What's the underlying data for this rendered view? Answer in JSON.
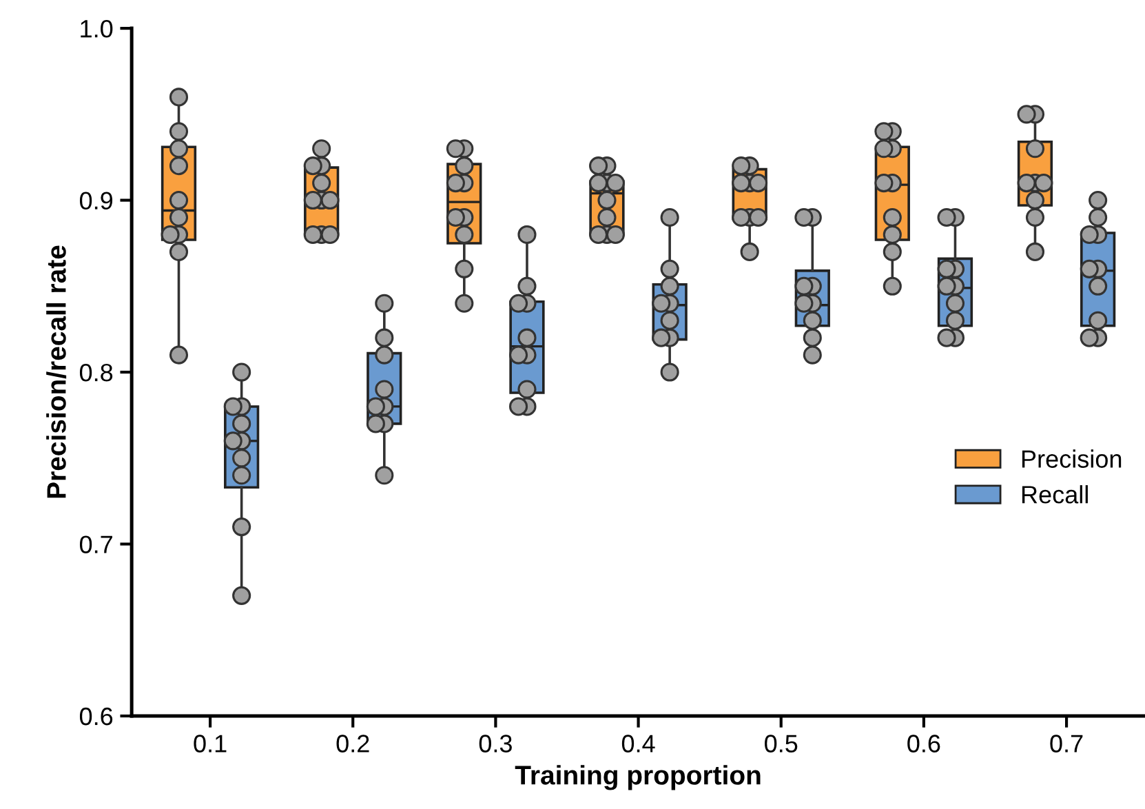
{
  "chart_data": {
    "type": "box",
    "xlabel": "Training proportion",
    "ylabel": "Precision/recall rate",
    "categories": [
      "0.1",
      "0.2",
      "0.3",
      "0.4",
      "0.5",
      "0.6",
      "0.7"
    ],
    "ylim": [
      0.6,
      1.0
    ],
    "yticks": [
      0.6,
      0.7,
      0.8,
      0.9,
      {
        "value": 1,
        "label": "1.0"
      }
    ],
    "legend": "right",
    "grid": false,
    "series": [
      {
        "name": "Precision",
        "color": "#f9a03f",
        "boxes": [
          {
            "low": 0.81,
            "q1": 0.877,
            "median": 0.894,
            "q3": 0.931,
            "high": 0.96
          },
          {
            "low": 0.88,
            "q1": 0.88,
            "median": 0.9,
            "q3": 0.919,
            "high": 0.93
          },
          {
            "low": 0.84,
            "q1": 0.875,
            "median": 0.899,
            "q3": 0.921,
            "high": 0.93
          },
          {
            "low": 0.88,
            "q1": 0.88,
            "median": 0.904,
            "q3": 0.911,
            "high": 0.92
          },
          {
            "low": 0.87,
            "q1": 0.889,
            "median": 0.909,
            "q3": 0.918,
            "high": 0.92
          },
          {
            "low": 0.85,
            "q1": 0.877,
            "median": 0.909,
            "q3": 0.931,
            "high": 0.94
          },
          {
            "low": 0.87,
            "q1": 0.897,
            "median": 0.909,
            "q3": 0.934,
            "high": 0.95
          }
        ]
      },
      {
        "name": "Recall",
        "color": "#6a9ad0",
        "boxes": [
          {
            "low": 0.67,
            "q1": 0.733,
            "median": 0.76,
            "q3": 0.78,
            "high": 0.8
          },
          {
            "low": 0.74,
            "q1": 0.77,
            "median": 0.78,
            "q3": 0.811,
            "high": 0.84
          },
          {
            "low": 0.78,
            "q1": 0.788,
            "median": 0.815,
            "q3": 0.841,
            "high": 0.88
          },
          {
            "low": 0.8,
            "q1": 0.819,
            "median": 0.839,
            "q3": 0.851,
            "high": 0.89
          },
          {
            "low": 0.81,
            "q1": 0.827,
            "median": 0.839,
            "q3": 0.859,
            "high": 0.89
          },
          {
            "low": 0.82,
            "q1": 0.827,
            "median": 0.849,
            "q3": 0.866,
            "high": 0.89
          },
          {
            "low": 0.82,
            "q1": 0.827,
            "median": 0.859,
            "q3": 0.881,
            "high": 0.9
          }
        ]
      },
      {
        "type": "scatter",
        "color": "#a0a0a0",
        "x": [
          "0.1",
          "0.1",
          "0.1",
          "0.1",
          "0.1",
          "0.1",
          "0.1",
          "0.1",
          "0.1",
          "0.1",
          "0.2",
          "0.2",
          "0.2",
          "0.2",
          "0.2",
          "0.2",
          "0.2",
          "0.2",
          "0.2",
          "0.2",
          "0.3",
          "0.3",
          "0.3",
          "0.3",
          "0.3",
          "0.3",
          "0.3",
          "0.3",
          "0.3",
          "0.3",
          "0.4",
          "0.4",
          "0.4",
          "0.4",
          "0.4",
          "0.4",
          "0.4",
          "0.4",
          "0.4",
          "0.4",
          "0.5",
          "0.5",
          "0.5",
          "0.5",
          "0.5",
          "0.5",
          "0.5",
          "0.5",
          "0.5",
          "0.6",
          "0.6",
          "0.6",
          "0.6",
          "0.6",
          "0.6",
          "0.6",
          "0.6",
          "0.6",
          "0.6",
          "0.7",
          "0.7",
          "0.7",
          "0.7",
          "0.7",
          "0.7",
          "0.7",
          "0.7",
          "0.7"
        ],
        "values": [
          0.96,
          0.94,
          0.93,
          0.92,
          0.9,
          0.89,
          0.88,
          0.88,
          0.87,
          0.81,
          0.93,
          0.92,
          0.92,
          0.91,
          0.9,
          0.9,
          0.9,
          0.88,
          0.88,
          0.88,
          0.93,
          0.93,
          0.92,
          0.91,
          0.91,
          0.89,
          0.89,
          0.88,
          0.86,
          0.84,
          0.92,
          0.92,
          0.91,
          0.91,
          0.91,
          0.9,
          0.89,
          0.88,
          0.88,
          0.88,
          0.92,
          0.92,
          0.91,
          0.91,
          0.91,
          0.89,
          0.89,
          0.89,
          0.87,
          0.94,
          0.94,
          0.93,
          0.93,
          0.91,
          0.91,
          0.89,
          0.88,
          0.87,
          0.85,
          0.95,
          0.95,
          0.93,
          0.91,
          0.91,
          0.91,
          0.9,
          0.89,
          0.87
        ]
      },
      {
        "type": "scatter",
        "color": "#a0a0a0",
        "x": [
          "0.1",
          "0.1",
          "0.1",
          "0.1",
          "0.1",
          "0.1",
          "0.1",
          "0.1",
          "0.1",
          "0.1",
          "0.2",
          "0.2",
          "0.2",
          "0.2",
          "0.2",
          "0.2",
          "0.2",
          "0.2",
          "0.2",
          "0.3",
          "0.3",
          "0.3",
          "0.3",
          "0.3",
          "0.3",
          "0.3",
          "0.3",
          "0.3",
          "0.3",
          "0.4",
          "0.4",
          "0.4",
          "0.4",
          "0.4",
          "0.4",
          "0.4",
          "0.4",
          "0.4",
          "0.5",
          "0.5",
          "0.5",
          "0.5",
          "0.5",
          "0.5",
          "0.5",
          "0.5",
          "0.5",
          "0.6",
          "0.6",
          "0.6",
          "0.6",
          "0.6",
          "0.6",
          "0.6",
          "0.6",
          "0.6",
          "0.6",
          "0.7",
          "0.7",
          "0.7",
          "0.7",
          "0.7",
          "0.7",
          "0.7",
          "0.7",
          "0.7",
          "0.7"
        ],
        "values": [
          0.8,
          0.78,
          0.78,
          0.77,
          0.76,
          0.76,
          0.75,
          0.74,
          0.71,
          0.67,
          0.84,
          0.82,
          0.81,
          0.79,
          0.78,
          0.78,
          0.77,
          0.77,
          0.74,
          0.88,
          0.85,
          0.84,
          0.84,
          0.82,
          0.81,
          0.81,
          0.79,
          0.78,
          0.78,
          0.89,
          0.86,
          0.85,
          0.84,
          0.84,
          0.83,
          0.82,
          0.82,
          0.8,
          0.89,
          0.89,
          0.85,
          0.85,
          0.84,
          0.84,
          0.83,
          0.82,
          0.81,
          0.89,
          0.89,
          0.86,
          0.86,
          0.85,
          0.85,
          0.84,
          0.83,
          0.82,
          0.82,
          0.9,
          0.89,
          0.88,
          0.88,
          0.86,
          0.86,
          0.85,
          0.83,
          0.82,
          0.82
        ]
      }
    ]
  }
}
